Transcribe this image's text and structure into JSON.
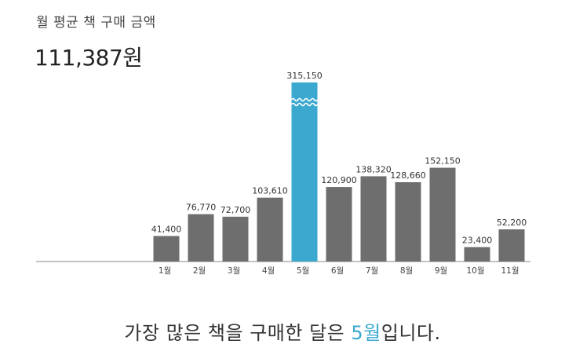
{
  "header": {
    "label": "월 평균 책 구매 금액",
    "amount": "111,387원"
  },
  "summary": {
    "prefix": "가장 많은 책을 구매한 달은 ",
    "highlight": "5월",
    "suffix": "입니다."
  },
  "colors": {
    "bar": "#6e6e6e",
    "highlight": "#3aa8cf",
    "axis": "#888888",
    "text": "#333333"
  },
  "chart_data": {
    "type": "bar",
    "categories": [
      "1월",
      "2월",
      "3월",
      "4월",
      "5월",
      "6월",
      "7월",
      "8월",
      "9월",
      "10월",
      "11월"
    ],
    "values": [
      41400,
      76770,
      72700,
      103610,
      315150,
      120900,
      138320,
      128660,
      152150,
      23400,
      52200
    ],
    "value_labels": [
      "41,400",
      "76,770",
      "72,700",
      "103,610",
      "315,150",
      "120,900",
      "138,320",
      "128,660",
      "152,150",
      "23,400",
      "52,200"
    ],
    "highlight_index": 4,
    "broken_bar_index": 4,
    "grid": false
  }
}
